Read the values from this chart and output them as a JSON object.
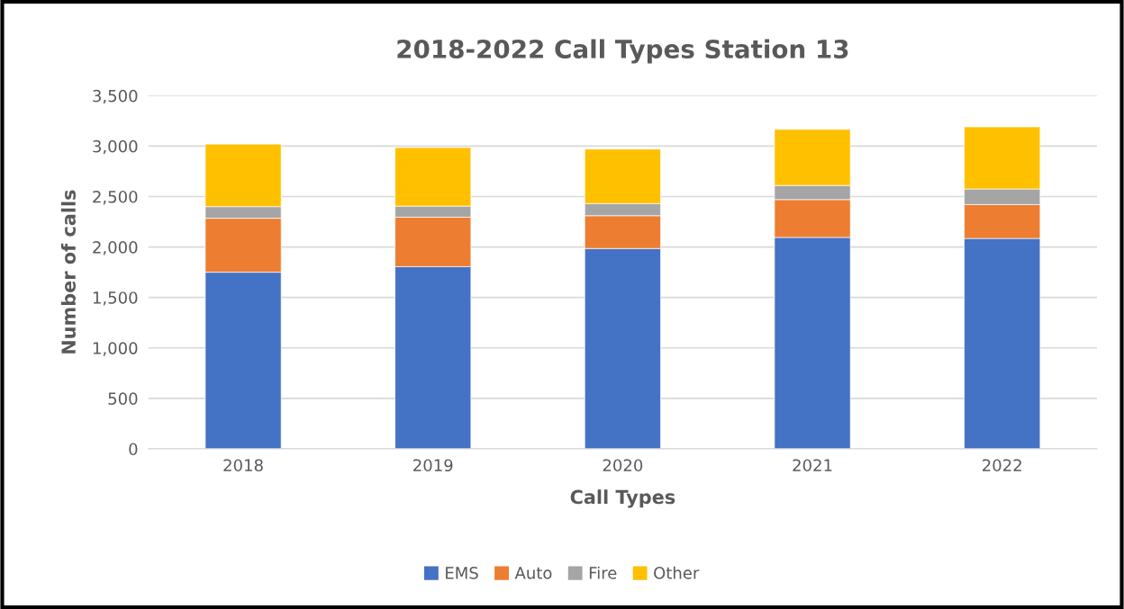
{
  "chart_data": {
    "type": "bar",
    "title": "2018-2022 Call Types Station 13",
    "xlabel": "Call Types",
    "ylabel": "Number of calls",
    "categories": [
      "2018",
      "2019",
      "2020",
      "2021",
      "2022"
    ],
    "stacked": true,
    "series": [
      {
        "name": "EMS",
        "color": "#4472c4",
        "values": [
          1750,
          1805,
          1985,
          2095,
          2085
        ]
      },
      {
        "name": "Auto",
        "color": "#ed7d31",
        "values": [
          535,
          490,
          325,
          375,
          335
        ]
      },
      {
        "name": "Fire",
        "color": "#a5a5a5",
        "values": [
          115,
          110,
          120,
          140,
          155
        ]
      },
      {
        "name": "Other",
        "color": "#ffc000",
        "values": [
          620,
          580,
          540,
          555,
          615
        ]
      }
    ],
    "ylim": [
      0,
      3500
    ],
    "yticks": [
      {
        "value": 0,
        "label": "0"
      },
      {
        "value": 500,
        "label": "500"
      },
      {
        "value": 1000,
        "label": "1,000"
      },
      {
        "value": 1500,
        "label": "1,500"
      },
      {
        "value": 2000,
        "label": "2,000"
      },
      {
        "value": 2500,
        "label": "2,500"
      },
      {
        "value": 3000,
        "label": "3,000"
      },
      {
        "value": 3500,
        "label": "3,500"
      }
    ],
    "grid": "y",
    "legend": "bottom"
  }
}
